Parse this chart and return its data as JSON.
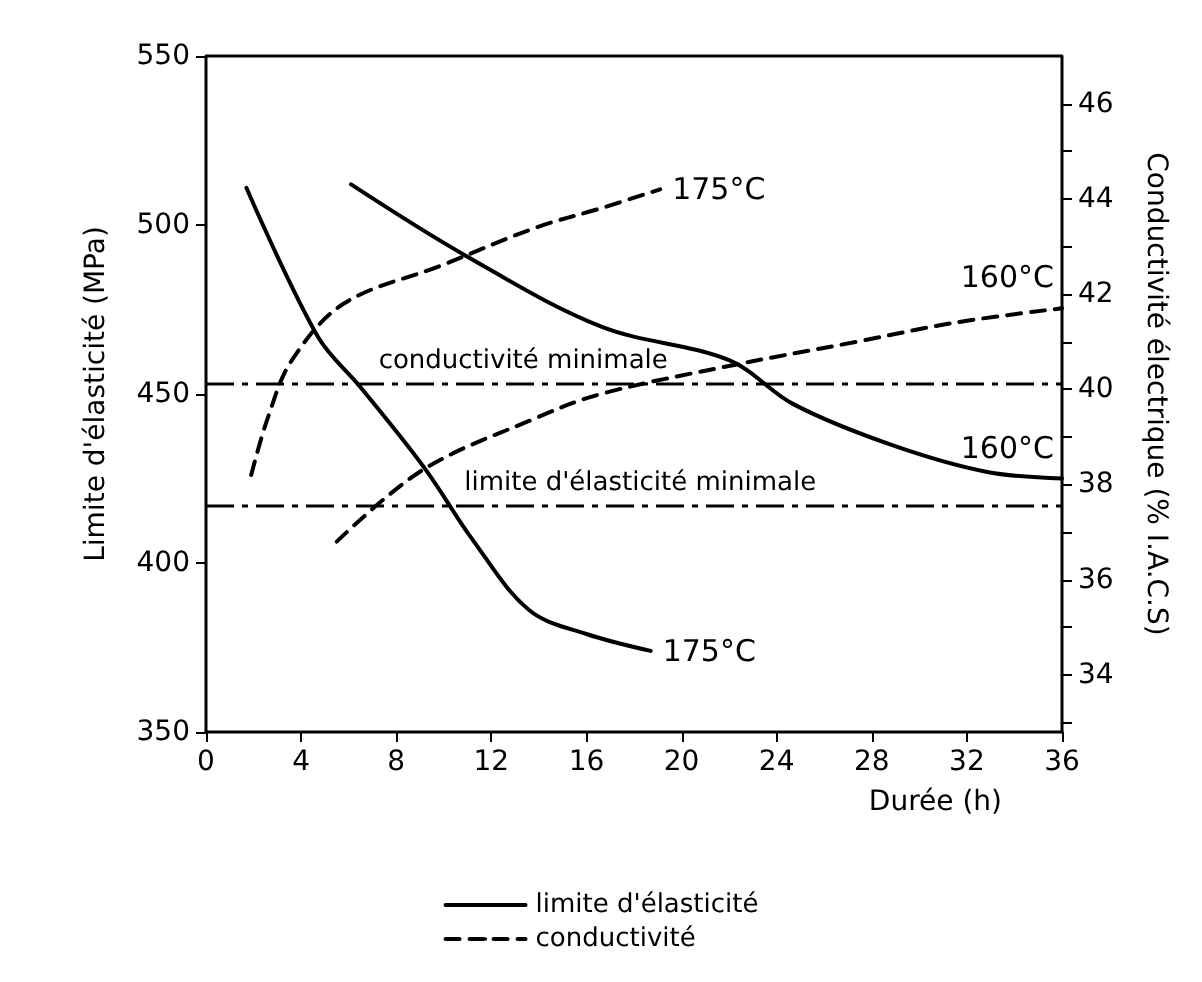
{
  "chart_data": {
    "type": "line",
    "xlabel": "Durée (h)",
    "ylabel": "Limite d'élasticité (MPa)",
    "y2label": "Conductivité électrique (% I.A.C.S)",
    "xlim": [
      0,
      36
    ],
    "xticks": [
      0,
      4,
      8,
      12,
      16,
      20,
      24,
      28,
      32,
      36
    ],
    "ylim": [
      350,
      550
    ],
    "yticks": [
      350,
      400,
      450,
      500,
      550
    ],
    "y2lim": [
      32.8,
      47
    ],
    "y2ticks": [
      {
        "value": 33,
        "label": null
      },
      34,
      {
        "value": 35,
        "label": null
      },
      36,
      {
        "value": 37,
        "label": null
      },
      38,
      {
        "value": 39,
        "label": null
      },
      40,
      {
        "value": 41,
        "label": null
      },
      42,
      {
        "value": 43,
        "label": null
      },
      44,
      {
        "value": 45,
        "label": null
      },
      46
    ],
    "grid": false,
    "legend": "bottom",
    "marker": "none",
    "series": [
      {
        "name": "limite d'élasticité",
        "color": "#000000",
        "line_style": "solid",
        "x": [
          1.7,
          4.7,
          6.5,
          9.2,
          11.2,
          13.6,
          16,
          18.7
        ],
        "values": [
          511,
          467,
          452,
          428,
          407,
          386,
          379,
          374
        ]
      },
      {
        "color": "#000000",
        "line_style": "solid",
        "x": [
          6.1,
          10.9,
          16.6,
          22,
          24.7,
          28.8,
          32.8,
          36
        ],
        "values": [
          512,
          491,
          470,
          460,
          447,
          435,
          427,
          425
        ]
      },
      {
        "name": "conductivité",
        "color": "#000000",
        "line_style": "dashed",
        "axis": "y2",
        "x": [
          1.9,
          2.6,
          3.6,
          5.8,
          9.9,
          13.9,
          16.6,
          19.1
        ],
        "values": [
          38.2,
          39.4,
          40.6,
          41.8,
          42.6,
          43.4,
          43.8,
          44.2
        ]
      },
      {
        "color": "#000000",
        "line_style": "dashed",
        "axis": "y2",
        "x": [
          5.5,
          9.1,
          13.9,
          16.6,
          22.1,
          27.4,
          31.5,
          36
        ],
        "values": [
          36.8,
          38.3,
          39.4,
          39.9,
          40.5,
          41,
          41.4,
          41.7
        ]
      }
    ],
    "ref_lines": [
      {
        "axis": "y2",
        "value": 40.1,
        "label": "conductivité minimale",
        "color": "#000000",
        "line_style": "dashdot"
      },
      {
        "axis": "y",
        "value": 417,
        "label": "limite d'élasticité minimale",
        "color": "#000000",
        "line_style": "dashdot"
      }
    ],
    "annotations": [
      "175°C",
      "160°C",
      "175°C",
      "160°C"
    ]
  }
}
